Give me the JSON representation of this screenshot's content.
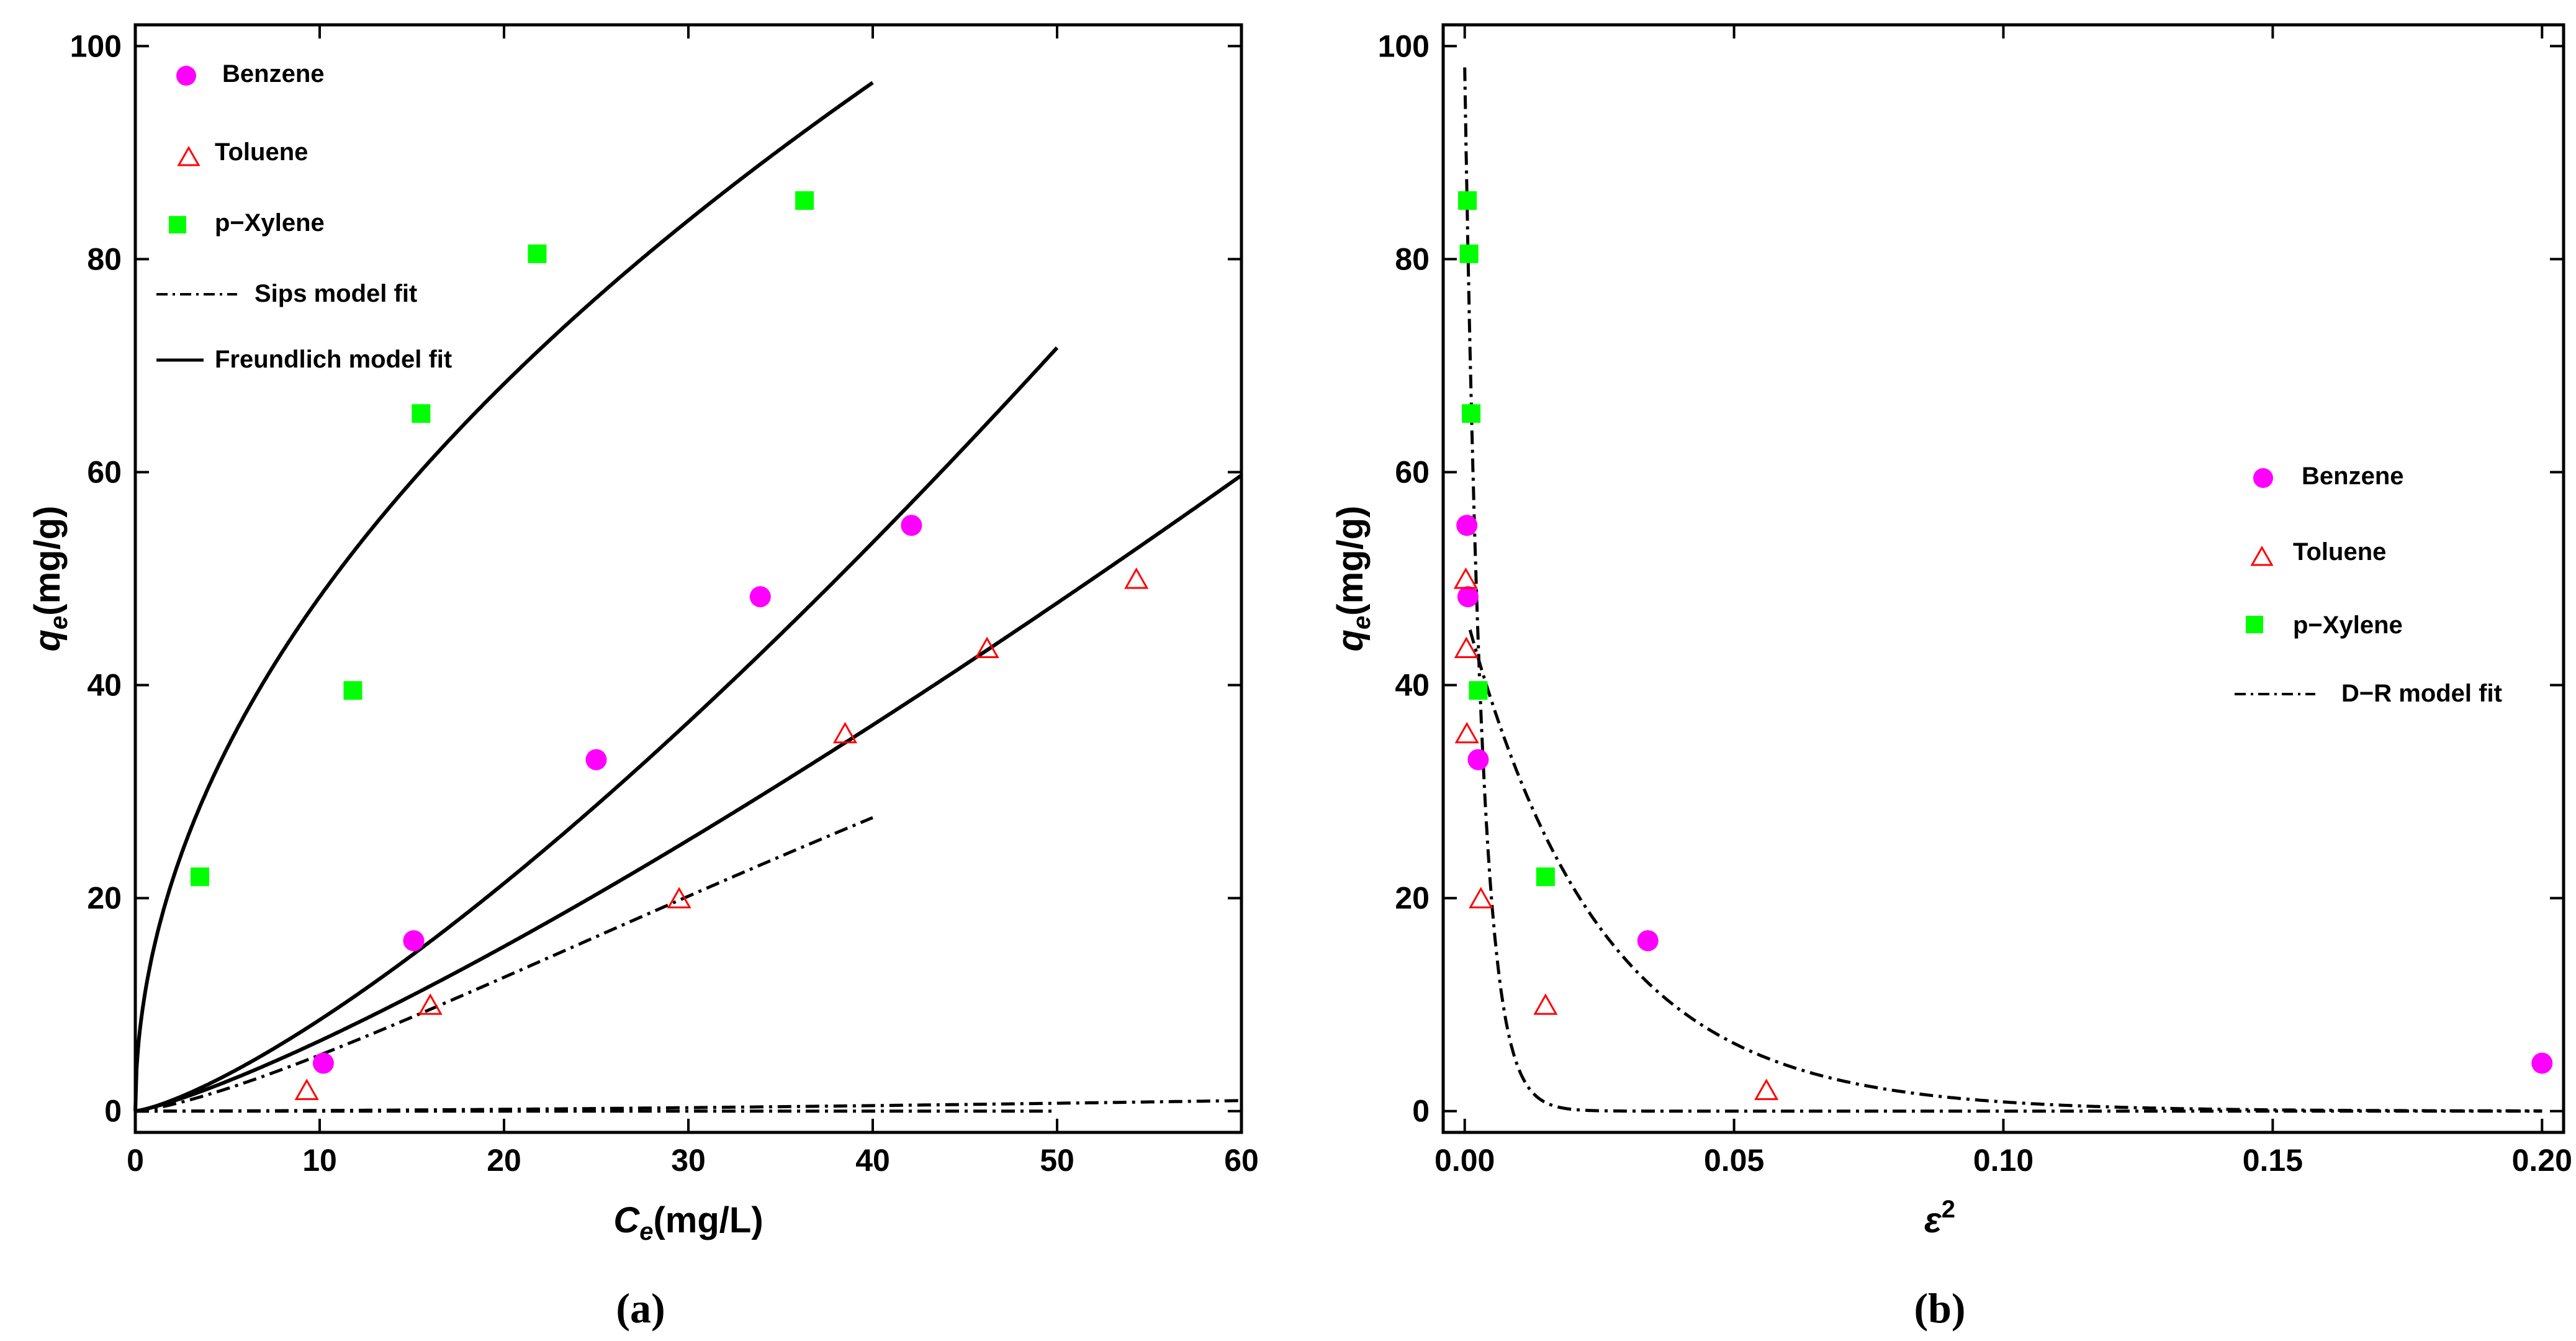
{
  "chart_data": [
    {
      "panel": "(a)",
      "type": "scatter",
      "xlabel": "C",
      "xlabel_sub": "e",
      "xlabel_unit": "(mg/L)",
      "ylabel": "q",
      "ylabel_sub": "e",
      "ylabel_unit": "(mg/g)",
      "xlim": [
        0,
        60
      ],
      "ylim": [
        -2,
        102
      ],
      "xticks": [
        "0",
        "10",
        "20",
        "30",
        "40",
        "50",
        "60"
      ],
      "yticks": [
        "0",
        "20",
        "40",
        "60",
        "80",
        "100"
      ],
      "legend_position": "top-left",
      "legend": [
        {
          "label": "Benzene",
          "marker": "circle"
        },
        {
          "label": "Toluene",
          "marker": "triangle"
        },
        {
          "label": "p−Xylene",
          "marker": "square"
        },
        {
          "label": "Sips model fit",
          "line": "dashdot"
        },
        {
          "label": "Freundlich model fit",
          "line": "solid"
        }
      ],
      "series": [
        {
          "name": "Benzene",
          "marker": "circle",
          "color": "#ff00ff",
          "x": [
            10.2,
            15.1,
            25.0,
            33.9,
            42.1
          ],
          "y": [
            4.5,
            16.0,
            33.0,
            48.3,
            55.0
          ]
        },
        {
          "name": "Toluene",
          "marker": "triangle",
          "color": "#ff0000",
          "x": [
            9.3,
            16.0,
            29.5,
            38.5,
            46.2,
            54.3
          ],
          "y": [
            2.0,
            10.0,
            20.0,
            35.5,
            43.5,
            50.0
          ]
        },
        {
          "name": "p−Xylene",
          "marker": "square",
          "color": "#00ff00",
          "x": [
            3.5,
            11.8,
            15.5,
            21.8,
            36.3
          ],
          "y": [
            22.0,
            39.5,
            65.5,
            80.5,
            85.5
          ]
        }
      ],
      "fits": [
        {
          "name": "Freundlich p-Xylene",
          "style": "solid",
          "model": "power",
          "k": 15.27,
          "n": 0.5,
          "xmax": 40
        },
        {
          "name": "Freundlich Benzene",
          "style": "solid",
          "model": "power",
          "k": 0.41,
          "n": 1.32,
          "xmax": 50
        },
        {
          "name": "Freundlich Toluene",
          "style": "solid",
          "model": "power",
          "k": 0.388,
          "n": 1.23,
          "xmax": 60
        },
        {
          "name": "Sips p-Xylene",
          "style": "dashdot",
          "model": "sips",
          "qm": 120,
          "b": 0.0102,
          "n": 1.35,
          "xmax": 40
        },
        {
          "name": "Sips Benzene",
          "style": "dashdot",
          "model": "sips",
          "qm": 67,
          "b": 0.000245,
          "n": 2.42,
          "xmax": 50
        },
        {
          "name": "Sips Toluene",
          "style": "dashdot",
          "model": "sips",
          "qm": 100,
          "b": 0.00097,
          "n": 1.62,
          "xmax": 60
        }
      ]
    },
    {
      "panel": "(b)",
      "type": "scatter",
      "xlabel": "ε",
      "xlabel_sup": "2",
      "ylabel": "q",
      "ylabel_sub": "e",
      "ylabel_unit": "(mg/g)",
      "xlim": [
        -0.004,
        0.204
      ],
      "ylim": [
        -2,
        102
      ],
      "xticks": [
        "0.00",
        "0.05",
        "0.10",
        "0.15",
        "0.20"
      ],
      "yticks": [
        "0",
        "20",
        "40",
        "60",
        "80",
        "100"
      ],
      "legend_position": "right",
      "legend": [
        {
          "label": "Benzene",
          "marker": "circle"
        },
        {
          "label": "Toluene",
          "marker": "triangle"
        },
        {
          "label": "p−Xylene",
          "marker": "square"
        },
        {
          "label": "D−R model fit",
          "line": "dashdot"
        }
      ],
      "series": [
        {
          "name": "Benzene",
          "marker": "circle",
          "color": "#ff00ff",
          "x": [
            0.0004,
            0.0006,
            0.0025,
            0.034,
            0.2
          ],
          "y": [
            55.0,
            48.3,
            33.0,
            16.0,
            4.5
          ]
        },
        {
          "name": "Toluene",
          "marker": "triangle",
          "color": "#ff0000",
          "x": [
            0.0002,
            0.0003,
            0.0004,
            0.003,
            0.015,
            0.056
          ],
          "y": [
            50.0,
            43.5,
            35.5,
            20.0,
            10.0,
            2.0
          ]
        },
        {
          "name": "p−Xylene",
          "marker": "square",
          "color": "#00ff00",
          "x": [
            0.0005,
            0.0008,
            0.0012,
            0.0025,
            0.015
          ],
          "y": [
            85.5,
            80.5,
            65.5,
            39.5,
            22.0
          ]
        }
      ],
      "fits": [
        {
          "name": "D-R fit (steep)",
          "style": "dashdot",
          "model": "exp",
          "a": 98,
          "k": 320,
          "xmin": 0.0,
          "xmax": 0.2
        },
        {
          "name": "D-R fit (broad)",
          "style": "dashdot",
          "model": "exp",
          "a": 47,
          "k": 40,
          "xmin": 0.001,
          "xmax": 0.2
        }
      ]
    }
  ]
}
